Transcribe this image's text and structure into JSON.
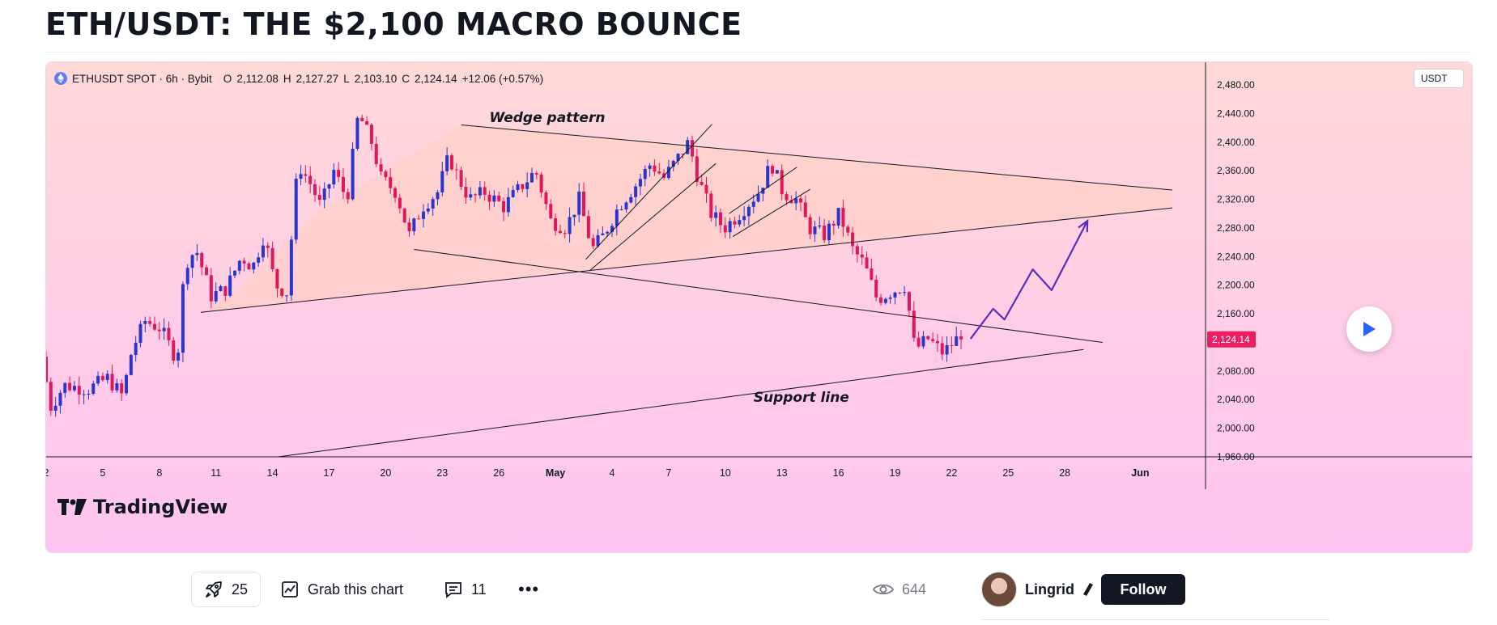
{
  "page": {
    "title": "ETH/USDT: THE $2,100 MACRO BOUNCE"
  },
  "legend": {
    "symbol": "ETHUSDT SPOT · 6h · Bybit",
    "open_label": "O",
    "open": "2,112.08",
    "high_label": "H",
    "high": "2,127.27",
    "low_label": "L",
    "low": "2,103.10",
    "close_label": "C",
    "close": "2,124.14",
    "change": "+12.06 (+0.57%)"
  },
  "currency": "USDT",
  "brand": "TradingView",
  "colors": {
    "bull": "#2b35c9",
    "bear": "#e0175b",
    "background_top": "#ffd8d8",
    "background_bottom": "#ffc4f2",
    "projection": "#5b2dbf",
    "wedge_fill": "#ffcfc0",
    "last_price_badge": "#e91e63"
  },
  "chart_data": {
    "type": "candlestick",
    "timeframe": "6h",
    "exchange": "Bybit",
    "ylim": [
      1960,
      2480
    ],
    "y_ticks": [
      1960,
      2000,
      2040,
      2080,
      2120,
      2160,
      2200,
      2240,
      2280,
      2320,
      2360,
      2400,
      2440,
      2480
    ],
    "y_tick_labels": [
      "1,960.00",
      "2,000.00",
      "2,040.00",
      "2,080.00",
      "2,120.00",
      "2,160.00",
      "2,200.00",
      "2,240.00",
      "2,280.00",
      "2,320.00",
      "2,360.00",
      "2,400.00",
      "2,440.00",
      "2,480.00"
    ],
    "x_ticks": [
      "2",
      "5",
      "8",
      "11",
      "14",
      "17",
      "20",
      "23",
      "26",
      "May",
      "4",
      "7",
      "10",
      "13",
      "16",
      "19",
      "22",
      "25",
      "28",
      "Jun"
    ],
    "last_price": 2124.14,
    "last_price_label": "2,124.14",
    "annotations": [
      {
        "text": "Wedge pattern"
      },
      {
        "text": "Support line"
      }
    ],
    "price_path": [
      {
        "day": 0.0,
        "price": 2100
      },
      {
        "day": 0.5,
        "price": 2030
      },
      {
        "day": 1.2,
        "price": 2060
      },
      {
        "day": 2.5,
        "price": 2055
      },
      {
        "day": 3.5,
        "price": 2070
      },
      {
        "day": 4.3,
        "price": 2045
      },
      {
        "day": 4.8,
        "price": 2110
      },
      {
        "day": 5.5,
        "price": 2150
      },
      {
        "day": 6.3,
        "price": 2140
      },
      {
        "day": 7.2,
        "price": 2095
      },
      {
        "day": 7.6,
        "price": 2230
      },
      {
        "day": 8.2,
        "price": 2250
      },
      {
        "day": 9.0,
        "price": 2185
      },
      {
        "day": 9.8,
        "price": 2195
      },
      {
        "day": 10.6,
        "price": 2240
      },
      {
        "day": 11.2,
        "price": 2225
      },
      {
        "day": 11.8,
        "price": 2270
      },
      {
        "day": 12.4,
        "price": 2200
      },
      {
        "day": 13.0,
        "price": 2190
      },
      {
        "day": 13.6,
        "price": 2370
      },
      {
        "day": 14.3,
        "price": 2340
      },
      {
        "day": 14.8,
        "price": 2310
      },
      {
        "day": 15.5,
        "price": 2360
      },
      {
        "day": 16.2,
        "price": 2320
      },
      {
        "day": 16.8,
        "price": 2440
      },
      {
        "day": 17.5,
        "price": 2400
      },
      {
        "day": 18.0,
        "price": 2350
      },
      {
        "day": 18.8,
        "price": 2330
      },
      {
        "day": 19.5,
        "price": 2270
      },
      {
        "day": 20.2,
        "price": 2310
      },
      {
        "day": 21.0,
        "price": 2330
      },
      {
        "day": 21.6,
        "price": 2380
      },
      {
        "day": 22.1,
        "price": 2350
      },
      {
        "day": 22.7,
        "price": 2320
      },
      {
        "day": 23.5,
        "price": 2330
      },
      {
        "day": 24.5,
        "price": 2310
      },
      {
        "day": 25.5,
        "price": 2340
      },
      {
        "day": 26.2,
        "price": 2360
      },
      {
        "day": 27.0,
        "price": 2290
      },
      {
        "day": 27.8,
        "price": 2280
      },
      {
        "day": 28.5,
        "price": 2320
      },
      {
        "day": 29.2,
        "price": 2250
      },
      {
        "day": 29.8,
        "price": 2270
      },
      {
        "day": 30.6,
        "price": 2310
      },
      {
        "day": 31.5,
        "price": 2340
      },
      {
        "day": 32.3,
        "price": 2370
      },
      {
        "day": 33.0,
        "price": 2350
      },
      {
        "day": 33.8,
        "price": 2380
      },
      {
        "day": 34.3,
        "price": 2400
      },
      {
        "day": 34.8,
        "price": 2350
      },
      {
        "day": 35.5,
        "price": 2300
      },
      {
        "day": 36.2,
        "price": 2280
      },
      {
        "day": 37.0,
        "price": 2300
      },
      {
        "day": 38.0,
        "price": 2330
      },
      {
        "day": 38.7,
        "price": 2370
      },
      {
        "day": 39.3,
        "price": 2330
      },
      {
        "day": 40.0,
        "price": 2320
      },
      {
        "day": 40.7,
        "price": 2280
      },
      {
        "day": 41.5,
        "price": 2270
      },
      {
        "day": 42.3,
        "price": 2300
      },
      {
        "day": 43.0,
        "price": 2250
      },
      {
        "day": 43.6,
        "price": 2230
      },
      {
        "day": 44.3,
        "price": 2180
      },
      {
        "day": 45.0,
        "price": 2190
      },
      {
        "day": 45.8,
        "price": 2200
      },
      {
        "day": 46.3,
        "price": 2110
      },
      {
        "day": 47.0,
        "price": 2125
      },
      {
        "day": 47.8,
        "price": 2105
      },
      {
        "day": 48.5,
        "price": 2124
      }
    ],
    "series": [
      {
        "kind": "trendline",
        "from": {
          "day": 8.2,
          "price": 2162
        },
        "to": {
          "day": 59.7,
          "price": 2308
        }
      },
      {
        "kind": "trendline",
        "from": {
          "day": 22.0,
          "price": 2424
        },
        "to": {
          "day": 59.7,
          "price": 2333
        }
      },
      {
        "kind": "trendline",
        "from": {
          "day": 19.5,
          "price": 2250
        },
        "to": {
          "day": 56.0,
          "price": 2120
        }
      },
      {
        "kind": "trendline",
        "from": {
          "day": 12.3,
          "price": 1960
        },
        "to": {
          "day": 55.0,
          "price": 2110
        }
      },
      {
        "kind": "channel",
        "from": {
          "day": 28.8,
          "price": 2220
        },
        "to": {
          "day": 35.5,
          "price": 2370
        }
      },
      {
        "kind": "channel",
        "from": {
          "day": 28.6,
          "price": 2236
        },
        "to": {
          "day": 35.3,
          "price": 2425
        }
      },
      {
        "kind": "channel",
        "from": {
          "day": 36.4,
          "price": 2268
        },
        "to": {
          "day": 40.5,
          "price": 2334
        }
      },
      {
        "kind": "channel",
        "from": {
          "day": 36.2,
          "price": 2300
        },
        "to": {
          "day": 39.8,
          "price": 2365
        }
      },
      {
        "kind": "projection",
        "points": [
          {
            "day": 49.0,
            "price": 2125
          },
          {
            "day": 50.2,
            "price": 2167
          },
          {
            "day": 50.8,
            "price": 2152
          },
          {
            "day": 52.3,
            "price": 2222
          },
          {
            "day": 53.3,
            "price": 2193
          },
          {
            "day": 55.2,
            "price": 2290
          }
        ]
      }
    ]
  },
  "actions": {
    "boosts": "25",
    "grab_label": "Grab this chart",
    "comments": "11",
    "more": "•••",
    "views": "644",
    "author": "Lingrid",
    "follow_label": "Follow"
  }
}
